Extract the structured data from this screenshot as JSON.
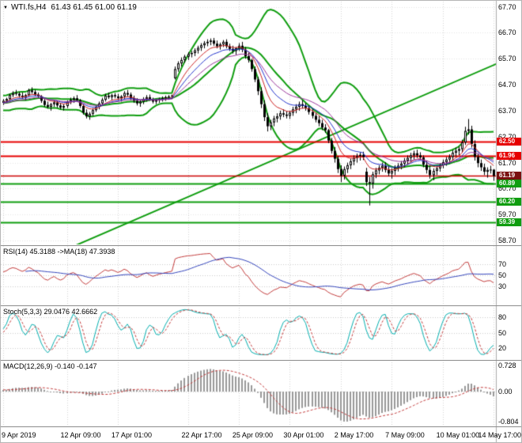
{
  "title": {
    "symbol": "WTI.fs,H4",
    "ohlc_values": "61.43 61.45 61.00 61.19"
  },
  "icons": {
    "chart_marker": "▼"
  },
  "colors": {
    "background": "#ffffff",
    "grid": "#d2d2d2",
    "candle_up": "#ffffff",
    "candle_down": "#000000",
    "candle_border": "#000000",
    "band": "#0f9d0f",
    "resistance": "#e60000",
    "support": "#0f9d0f",
    "current_price_line": "#cc0000",
    "axis_text": "#000000"
  },
  "chart_data": {
    "type": "candlestick",
    "symbol": "WTI.fs",
    "timeframe": "H4",
    "current_bar": {
      "open": 61.43,
      "high": 61.45,
      "low": 61.0,
      "close": 61.19
    },
    "price_axis": {
      "view_high": 67.9,
      "view_low": 58.55,
      "labels": [
        {
          "text": "67.70",
          "value": 67.7
        },
        {
          "text": "66.70",
          "value": 66.7
        },
        {
          "text": "65.70",
          "value": 65.7
        },
        {
          "text": "64.70",
          "value": 64.7
        },
        {
          "text": "63.70",
          "value": 63.7
        },
        {
          "text": "62.70",
          "value": 62.7
        },
        {
          "text": "61.70",
          "value": 61.7
        },
        {
          "text": "60.70",
          "value": 60.7
        },
        {
          "text": "59.70",
          "value": 59.7
        },
        {
          "text": "58.70",
          "value": 58.7
        }
      ]
    },
    "level_lines": [
      {
        "price": 62.5,
        "label": "62.50",
        "color": "#e60000",
        "tag_color": "#e60000",
        "kind": "resistance"
      },
      {
        "price": 61.96,
        "label": "61.96",
        "color": "#e60000",
        "tag_color": "#e60000",
        "kind": "resistance"
      },
      {
        "price": 61.19,
        "label": "61.19",
        "color": "#cc0000",
        "tag_color": "#7a1010",
        "kind": "current-price"
      },
      {
        "price": 60.89,
        "label": "60.89",
        "color": "#0f9d0f",
        "tag_color": "#0f9d0f",
        "kind": "support"
      },
      {
        "price": 60.2,
        "label": "60.20",
        "color": "#0f9d0f",
        "tag_color": "#0f9d0f",
        "kind": "support"
      },
      {
        "price": 59.39,
        "label": "59.39",
        "color": "#0f9d0f",
        "tag_color": "#0f9d0f",
        "kind": "support"
      }
    ],
    "trendline": {
      "start_index": 0,
      "start_price": 57.31,
      "end_index": 163,
      "end_price": 65.93,
      "color": "#0f9d0f"
    },
    "bollinger": {
      "period": 20,
      "deviation": 2.0,
      "color": "#0f9d0f"
    },
    "moving_averages": [
      {
        "period": 8,
        "color": "#cc2222"
      },
      {
        "period": 13,
        "color": "#2233cc"
      },
      {
        "period": 21,
        "color": "#993399"
      }
    ],
    "time_axis": [
      {
        "label": "9 Apr 2019",
        "index": 0
      },
      {
        "label": "12 Apr 09:00",
        "index": 20
      },
      {
        "label": "17 Apr 01:00",
        "index": 36
      },
      {
        "label": "22 Apr 17:00",
        "index": 58
      },
      {
        "label": "25 Apr 09:00",
        "index": 74
      },
      {
        "label": "30 Apr 01:00",
        "index": 90
      },
      {
        "label": "2 May 17:00",
        "index": 106
      },
      {
        "label": "7 May 09:00",
        "index": 122
      },
      {
        "label": "10 May 01:00",
        "index": 138
      },
      {
        "label": "14 May 17:00",
        "index": 154
      }
    ],
    "warmup_candles": [
      [
        63.6,
        63.8,
        63.4,
        63.75
      ],
      [
        63.75,
        64.0,
        63.6,
        63.9
      ],
      [
        63.9,
        64.2,
        63.8,
        64.1
      ],
      [
        64.1,
        64.4,
        64.0,
        64.3
      ],
      [
        64.3,
        64.5,
        64.1,
        64.2
      ],
      [
        64.2,
        64.35,
        63.95,
        64.05
      ],
      [
        64.05,
        64.15,
        63.75,
        63.85
      ],
      [
        63.85,
        64.0,
        63.6,
        63.7
      ],
      [
        63.7,
        63.9,
        63.55,
        63.8
      ],
      [
        63.8,
        64.1,
        63.7,
        64.0
      ],
      [
        64.0,
        64.25,
        63.9,
        64.15
      ],
      [
        64.15,
        64.4,
        64.05,
        64.3
      ],
      [
        64.3,
        64.45,
        64.1,
        64.2
      ],
      [
        64.2,
        64.3,
        63.9,
        64.0
      ],
      [
        64.0,
        64.1,
        63.7,
        63.8
      ],
      [
        63.8,
        63.95,
        63.6,
        63.88
      ],
      [
        63.88,
        64.05,
        63.72,
        63.95
      ],
      [
        63.95,
        64.15,
        63.82,
        64.05
      ],
      [
        64.05,
        64.22,
        63.9,
        64.12
      ],
      [
        64.12,
        64.28,
        63.95,
        64.02
      ],
      [
        64.02,
        64.15,
        63.85,
        63.92
      ],
      [
        63.92,
        64.08,
        63.78,
        64.0
      ],
      [
        64.0,
        64.18,
        63.88,
        64.08
      ],
      [
        64.08,
        64.2,
        63.92,
        63.98
      ]
    ],
    "candles": [
      [
        64.0,
        64.15,
        63.92,
        64.08
      ],
      [
        64.08,
        64.2,
        64.0,
        64.15
      ],
      [
        64.15,
        64.35,
        64.1,
        64.3
      ],
      [
        64.3,
        64.45,
        64.22,
        64.38
      ],
      [
        64.38,
        64.5,
        64.28,
        64.35
      ],
      [
        64.35,
        64.42,
        64.2,
        64.28
      ],
      [
        64.28,
        64.4,
        64.15,
        64.22
      ],
      [
        64.22,
        64.35,
        64.1,
        64.3
      ],
      [
        64.3,
        64.55,
        64.25,
        64.48
      ],
      [
        64.48,
        64.6,
        64.35,
        64.42
      ],
      [
        64.42,
        64.5,
        64.25,
        64.32
      ],
      [
        64.32,
        64.4,
        64.18,
        64.25
      ],
      [
        64.25,
        64.3,
        64.0,
        64.08
      ],
      [
        64.08,
        64.15,
        63.85,
        63.92
      ],
      [
        63.92,
        64.05,
        63.78,
        63.85
      ],
      [
        63.85,
        64.0,
        63.7,
        63.95
      ],
      [
        63.95,
        64.1,
        63.85,
        64.02
      ],
      [
        64.02,
        64.08,
        63.82,
        63.9
      ],
      [
        63.9,
        64.0,
        63.75,
        63.82
      ],
      [
        63.82,
        63.95,
        63.7,
        63.88
      ],
      [
        63.88,
        64.1,
        63.8,
        64.05
      ],
      [
        64.05,
        64.2,
        63.95,
        64.12
      ],
      [
        64.12,
        64.25,
        64.0,
        64.18
      ],
      [
        64.18,
        64.3,
        64.05,
        64.1
      ],
      [
        64.1,
        64.15,
        63.8,
        63.88
      ],
      [
        63.88,
        63.95,
        63.55,
        63.62
      ],
      [
        63.62,
        63.75,
        63.4,
        63.48
      ],
      [
        63.48,
        63.65,
        63.35,
        63.58
      ],
      [
        63.58,
        63.8,
        63.5,
        63.72
      ],
      [
        63.72,
        63.9,
        63.65,
        63.85
      ],
      [
        63.85,
        64.05,
        63.75,
        63.98
      ],
      [
        63.98,
        64.2,
        63.9,
        64.12
      ],
      [
        64.12,
        64.35,
        64.05,
        64.28
      ],
      [
        64.28,
        64.4,
        64.15,
        64.22
      ],
      [
        64.22,
        64.35,
        64.1,
        64.3
      ],
      [
        64.3,
        64.38,
        64.18,
        64.25
      ],
      [
        64.25,
        64.35,
        64.1,
        64.18
      ],
      [
        64.18,
        64.3,
        64.05,
        64.25
      ],
      [
        64.25,
        64.45,
        64.15,
        64.38
      ],
      [
        64.38,
        64.5,
        64.25,
        64.32
      ],
      [
        64.32,
        64.4,
        64.1,
        64.18
      ],
      [
        64.18,
        64.28,
        64.0,
        64.08
      ],
      [
        64.08,
        64.18,
        63.9,
        63.98
      ],
      [
        63.98,
        64.1,
        63.85,
        64.05
      ],
      [
        64.05,
        64.22,
        63.95,
        64.15
      ],
      [
        64.15,
        64.3,
        64.05,
        64.22
      ],
      [
        64.22,
        64.32,
        64.08,
        64.12
      ],
      [
        64.12,
        64.2,
        63.98,
        64.05
      ],
      [
        64.05,
        64.15,
        63.95,
        64.1
      ],
      [
        64.1,
        64.2,
        64.0,
        64.15
      ],
      [
        64.15,
        64.25,
        64.05,
        64.18
      ],
      [
        64.18,
        64.28,
        64.08,
        64.22
      ],
      [
        64.22,
        64.3,
        64.12,
        64.25
      ],
      [
        64.25,
        64.32,
        64.15,
        64.28
      ],
      [
        64.95,
        65.4,
        64.9,
        65.3
      ],
      [
        65.3,
        65.6,
        65.2,
        65.52
      ],
      [
        65.52,
        65.75,
        65.4,
        65.65
      ],
      [
        65.65,
        65.85,
        65.55,
        65.78
      ],
      [
        65.78,
        65.95,
        65.65,
        65.88
      ],
      [
        65.88,
        66.0,
        65.75,
        65.92
      ],
      [
        65.92,
        66.1,
        65.8,
        66.02
      ],
      [
        66.02,
        66.2,
        65.9,
        66.12
      ],
      [
        66.12,
        66.3,
        66.0,
        66.22
      ],
      [
        66.22,
        66.38,
        66.1,
        66.3
      ],
      [
        66.3,
        66.45,
        66.18,
        66.35
      ],
      [
        66.35,
        66.48,
        66.22,
        66.4
      ],
      [
        66.4,
        66.5,
        66.2,
        66.28
      ],
      [
        66.28,
        66.4,
        66.1,
        66.18
      ],
      [
        66.18,
        66.32,
        66.05,
        66.25
      ],
      [
        66.25,
        66.42,
        66.15,
        66.35
      ],
      [
        66.35,
        66.45,
        66.1,
        66.18
      ],
      [
        66.18,
        66.28,
        66.0,
        66.08
      ],
      [
        66.08,
        66.2,
        65.9,
        66.0
      ],
      [
        66.0,
        66.15,
        65.85,
        66.1
      ],
      [
        66.1,
        66.3,
        66.0,
        66.2
      ],
      [
        66.2,
        66.35,
        65.95,
        66.05
      ],
      [
        66.05,
        66.15,
        65.7,
        65.8
      ],
      [
        65.8,
        65.92,
        65.55,
        65.65
      ],
      [
        65.65,
        65.7,
        65.2,
        65.3
      ],
      [
        65.3,
        65.4,
        64.8,
        64.9
      ],
      [
        64.9,
        65.0,
        64.3,
        64.45
      ],
      [
        64.45,
        64.6,
        63.8,
        63.95
      ],
      [
        63.95,
        64.1,
        63.3,
        63.45
      ],
      [
        63.45,
        63.6,
        62.9,
        63.1
      ],
      [
        63.1,
        63.35,
        62.95,
        63.25
      ],
      [
        63.25,
        63.5,
        63.1,
        63.4
      ],
      [
        63.4,
        63.6,
        63.25,
        63.48
      ],
      [
        63.48,
        63.7,
        63.35,
        63.6
      ],
      [
        63.6,
        63.75,
        63.45,
        63.55
      ],
      [
        63.55,
        63.68,
        63.4,
        63.5
      ],
      [
        63.5,
        63.7,
        63.38,
        63.62
      ],
      [
        63.62,
        63.85,
        63.5,
        63.75
      ],
      [
        63.75,
        63.95,
        63.6,
        63.85
      ],
      [
        63.85,
        64.05,
        63.7,
        63.95
      ],
      [
        63.95,
        64.1,
        63.78,
        63.88
      ],
      [
        63.88,
        64.0,
        63.7,
        63.8
      ],
      [
        63.8,
        63.9,
        63.55,
        63.65
      ],
      [
        63.65,
        63.78,
        63.4,
        63.5
      ],
      [
        63.5,
        63.62,
        63.25,
        63.35
      ],
      [
        63.35,
        63.5,
        63.1,
        63.22
      ],
      [
        63.22,
        63.35,
        62.95,
        63.05
      ],
      [
        63.05,
        63.18,
        62.85,
        62.95
      ],
      [
        62.95,
        63.0,
        62.45,
        62.55
      ],
      [
        62.55,
        62.65,
        62.05,
        62.15
      ],
      [
        62.15,
        62.3,
        61.7,
        61.85
      ],
      [
        61.85,
        61.95,
        61.3,
        61.45
      ],
      [
        61.45,
        61.6,
        60.95,
        61.2
      ],
      [
        61.2,
        61.55,
        61.05,
        61.45
      ],
      [
        61.45,
        61.7,
        61.3,
        61.6
      ],
      [
        61.6,
        61.85,
        61.45,
        61.75
      ],
      [
        61.75,
        61.98,
        61.6,
        61.88
      ],
      [
        61.88,
        62.05,
        61.7,
        61.95
      ],
      [
        61.95,
        62.1,
        61.78,
        62.0
      ],
      [
        62.0,
        62.12,
        61.8,
        61.9
      ],
      [
        61.35,
        61.5,
        60.8,
        60.95
      ],
      [
        60.95,
        61.15,
        60.05,
        60.9
      ],
      [
        60.9,
        61.35,
        60.7,
        61.25
      ],
      [
        61.25,
        61.5,
        61.1,
        61.4
      ],
      [
        61.4,
        61.6,
        61.25,
        61.5
      ],
      [
        61.5,
        61.7,
        61.35,
        61.58
      ],
      [
        61.58,
        61.72,
        61.32,
        61.42
      ],
      [
        61.42,
        61.58,
        61.18,
        61.28
      ],
      [
        61.28,
        61.48,
        61.08,
        61.38
      ],
      [
        61.38,
        61.6,
        61.22,
        61.5
      ],
      [
        61.5,
        61.68,
        61.36,
        61.58
      ],
      [
        61.58,
        61.76,
        61.44,
        61.66
      ],
      [
        61.66,
        61.88,
        61.52,
        61.78
      ],
      [
        61.78,
        61.98,
        61.62,
        61.88
      ],
      [
        61.88,
        62.08,
        61.72,
        61.98
      ],
      [
        61.98,
        62.16,
        61.82,
        62.06
      ],
      [
        62.06,
        62.2,
        61.88,
        61.98
      ],
      [
        61.98,
        62.1,
        61.8,
        61.9
      ],
      [
        61.9,
        61.98,
        61.52,
        61.62
      ],
      [
        61.62,
        61.78,
        61.28,
        61.42
      ],
      [
        61.42,
        61.58,
        61.08,
        61.22
      ],
      [
        61.22,
        61.48,
        61.02,
        61.38
      ],
      [
        61.38,
        61.58,
        61.22,
        61.48
      ],
      [
        61.48,
        61.68,
        61.35,
        61.6
      ],
      [
        61.6,
        61.82,
        61.48,
        61.72
      ],
      [
        61.72,
        61.92,
        61.58,
        61.82
      ],
      [
        61.82,
        62.02,
        61.66,
        61.92
      ],
      [
        61.92,
        62.18,
        61.78,
        62.08
      ],
      [
        62.08,
        62.28,
        61.92,
        62.16
      ],
      [
        62.16,
        62.32,
        61.98,
        62.22
      ],
      [
        62.22,
        62.58,
        62.08,
        62.48
      ],
      [
        62.48,
        63.08,
        62.38,
        62.92
      ],
      [
        62.92,
        63.38,
        62.78,
        62.98
      ],
      [
        62.98,
        63.12,
        62.28,
        62.42
      ],
      [
        62.42,
        62.56,
        61.78,
        61.92
      ],
      [
        61.92,
        62.06,
        61.52,
        61.68
      ],
      [
        61.68,
        61.82,
        61.38,
        61.52
      ],
      [
        61.52,
        61.66,
        61.22,
        61.35
      ],
      [
        61.35,
        61.52,
        61.12,
        61.42
      ],
      [
        61.42,
        61.58,
        61.28,
        61.43
      ],
      [
        61.43,
        61.45,
        61.0,
        61.19
      ]
    ],
    "indicator_panels": [
      {
        "id": "rsi",
        "label": "RSI(14) 45.3188  ->MA(18) 47.3938",
        "params": {
          "period": 14,
          "ma_period": 18
        },
        "current": [
          45.3188,
          47.3938
        ],
        "levels": [
          70,
          50,
          30
        ],
        "axis_labels": [
          {
            "text": "70",
            "value": 70
          },
          {
            "text": "50",
            "value": 50
          },
          {
            "text": "30",
            "value": 30
          }
        ],
        "line_color": "#c23b3b",
        "ma_color": "#3344bb"
      },
      {
        "id": "stoch",
        "label": "Stoch(5,3,3) 29.0476 42.6662",
        "params": {
          "k": 5,
          "d": 3,
          "slowing": 3
        },
        "current": [
          29.0476,
          42.6662
        ],
        "levels": [
          80,
          50,
          20
        ],
        "axis_labels": [
          {
            "text": "80",
            "value": 80
          },
          {
            "text": "50",
            "value": 50
          },
          {
            "text": "20",
            "value": 20
          }
        ],
        "line_color": "#00adad",
        "ma_color": "#c23b3b"
      },
      {
        "id": "macd",
        "label": "MACD(12,26,9) -0.140 -0.147",
        "params": {
          "fast": 12,
          "slow": 26,
          "signal": 9
        },
        "current": [
          -0.14,
          -0.147
        ],
        "range": [
          -0.85,
          0.77
        ],
        "axis_labels": [
          {
            "text": "0.728",
            "value": 0.728
          },
          {
            "text": "0.00",
            "value": 0
          },
          {
            "text": "-0.804",
            "value": -0.804
          }
        ],
        "hist_color": "#989898",
        "signal_color": "#c23b3b"
      }
    ]
  }
}
